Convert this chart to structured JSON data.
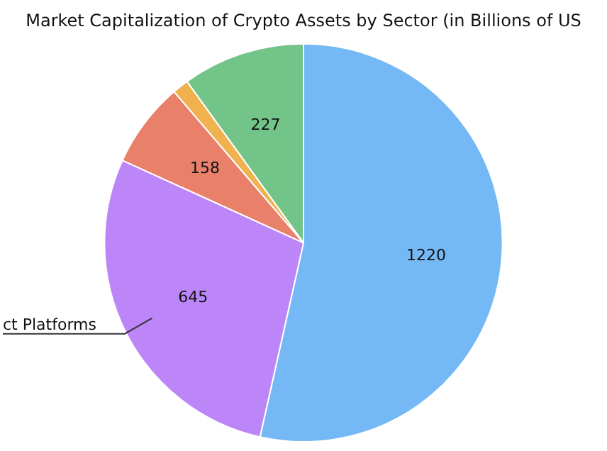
{
  "chart_data": {
    "type": "pie",
    "title": "Market Capitalization of Crypto Assets by Sector (in Billions of US",
    "categories": [
      null,
      "ct Platforms",
      null,
      null,
      null
    ],
    "values": [
      1220,
      645,
      158,
      30,
      227
    ],
    "colors": [
      "#74b9f5",
      "#bd86f8",
      "#e8806a",
      "#f0b14f",
      "#72c489"
    ],
    "value_labels": [
      "1220",
      "645",
      "158",
      null,
      "227"
    ],
    "legend": false
  }
}
